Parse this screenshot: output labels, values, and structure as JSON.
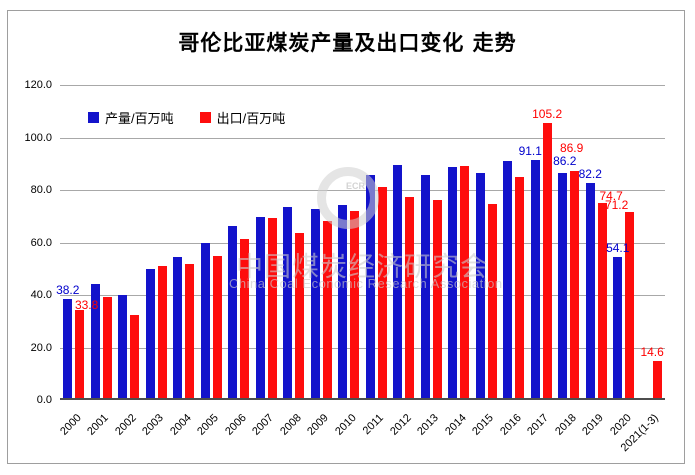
{
  "chart_data": {
    "type": "bar",
    "title": "哥伦比亚煤炭产量及出口变化 走势",
    "categories": [
      "2000",
      "2001",
      "2002",
      "2003",
      "2004",
      "2005",
      "2006",
      "2007",
      "2008",
      "2009",
      "2010",
      "2011",
      "2012",
      "2013",
      "2014",
      "2015",
      "2016",
      "2017",
      "2018",
      "2019",
      "2020",
      "2021(1-3)"
    ],
    "series": [
      {
        "name": "产量/百万吨",
        "color": "#1313CB",
        "label_color": "#0000CC",
        "values": [
          38.2,
          43.9,
          39.5,
          49.7,
          54.0,
          59.5,
          66.0,
          69.4,
          73.1,
          72.5,
          74.0,
          85.5,
          89.3,
          85.4,
          88.3,
          86.2,
          90.6,
          91.1,
          86.2,
          82.2,
          54.1,
          null
        ],
        "labels": [
          "38.2",
          null,
          null,
          null,
          null,
          null,
          null,
          null,
          null,
          null,
          null,
          null,
          null,
          null,
          null,
          null,
          null,
          "91.1",
          "86.2",
          "82.2",
          "54.1",
          null
        ]
      },
      {
        "name": "出口/百万吨",
        "color": "#FE0D0D",
        "label_color": "#FF0000",
        "values": [
          33.8,
          38.7,
          31.9,
          50.8,
          51.3,
          54.5,
          60.8,
          69.0,
          63.1,
          68.0,
          71.5,
          80.7,
          77.0,
          76.0,
          88.7,
          74.3,
          84.7,
          105.2,
          86.9,
          74.7,
          71.2,
          14.6
        ],
        "labels": [
          "33.8",
          null,
          null,
          null,
          null,
          null,
          null,
          null,
          null,
          null,
          null,
          null,
          null,
          null,
          null,
          null,
          null,
          "105.2",
          "86.9",
          "74.7",
          "71.2",
          "14.6"
        ]
      }
    ],
    "xlabel": "",
    "ylabel": "",
    "ylim": [
      0,
      120
    ],
    "y_ticks": [
      "120.0",
      "100.0",
      "80.0",
      "60.0",
      "40.0",
      "20.0",
      "0.0"
    ],
    "grid": true,
    "legend_position": "inside-top-left"
  },
  "watermark": {
    "logo_text": "ECR",
    "cn": "中国煤炭经济研究会",
    "en": "China Coal Economic Research Association"
  }
}
